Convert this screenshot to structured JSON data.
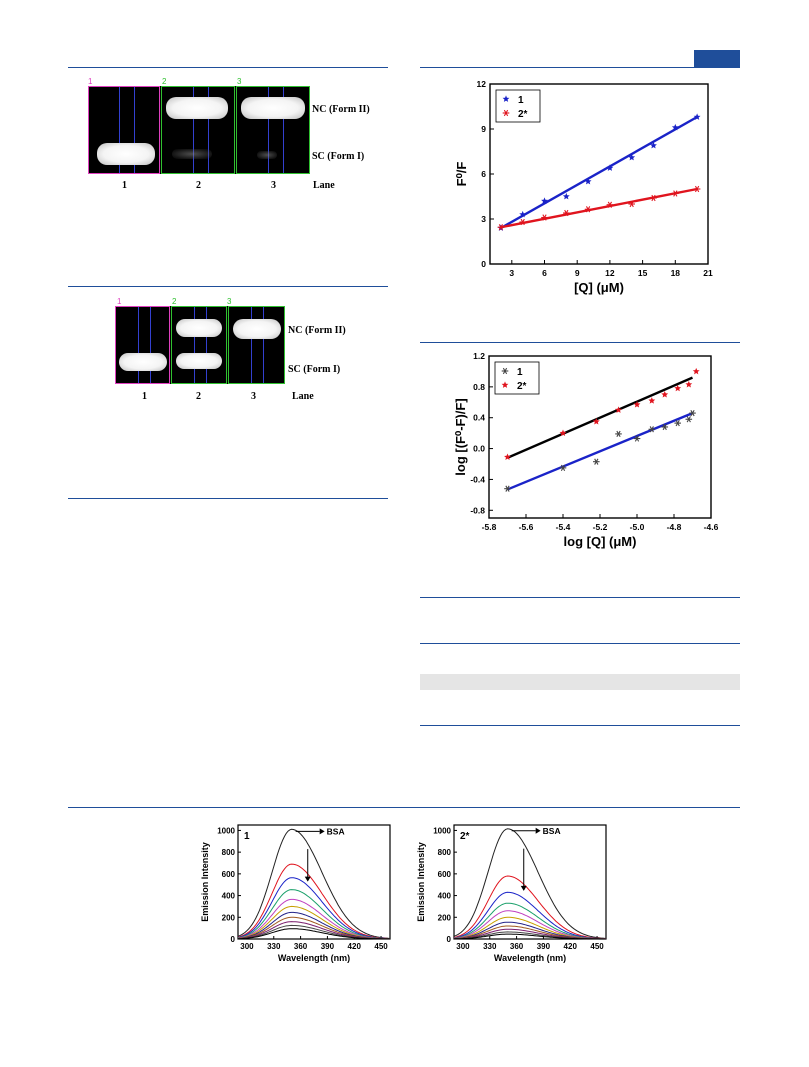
{
  "gel1": {
    "lane_markers": [
      "1",
      "2",
      "3"
    ],
    "labels": {
      "nc": "NC (Form II)",
      "sc": "SC (Form I)",
      "lane": "Lane"
    },
    "lane_numbers": [
      "1",
      "2",
      "3"
    ]
  },
  "gel2": {
    "lane_markers": [
      "1",
      "2",
      "3"
    ],
    "labels": {
      "nc": "NC (Form II)",
      "sc": "SC (Form I)",
      "lane": "Lane"
    },
    "lane_numbers": [
      "1",
      "2",
      "3"
    ]
  },
  "colors": {
    "rule": "#1f4e9a",
    "accent_block": "#1f4e9a",
    "gray_band": "#e5e5e5"
  },
  "chart_data": [
    {
      "type": "scatter",
      "id": "stern-volmer",
      "xlabel": "[Q] (μM)",
      "ylabel": "F⁰/F",
      "xlim": [
        1,
        21
      ],
      "ylim": [
        0,
        12
      ],
      "xticks": [
        "3",
        "6",
        "9",
        "12",
        "15",
        "18",
        "21"
      ],
      "yticks": [
        "0",
        "3",
        "6",
        "9",
        "12"
      ],
      "legend_position": "top-left",
      "series": [
        {
          "name": "1",
          "color": "#1a23c8",
          "marker": "star",
          "fit_color": "#1a23c8",
          "x": [
            2,
            4,
            6,
            8,
            10,
            12,
            14,
            16,
            18,
            20
          ],
          "y": [
            2.4,
            3.3,
            4.2,
            4.5,
            5.5,
            6.4,
            7.1,
            7.9,
            9.1,
            9.8
          ],
          "fit": [
            [
              2,
              2.4
            ],
            [
              20,
              9.8
            ]
          ]
        },
        {
          "name": "2*",
          "color": "#e0141e",
          "marker": "asterisk",
          "fit_color": "#e0141e",
          "x": [
            2,
            4,
            6,
            8,
            10,
            12,
            14,
            16,
            18,
            20
          ],
          "y": [
            2.45,
            2.8,
            3.1,
            3.4,
            3.65,
            3.95,
            4.0,
            4.4,
            4.7,
            5.0
          ],
          "fit": [
            [
              2,
              2.45
            ],
            [
              20,
              5.0
            ]
          ]
        }
      ]
    },
    {
      "type": "scatter",
      "id": "double-log",
      "xlabel": "log [Q] (μM)",
      "ylabel": "log [(F⁰-F)/F]",
      "xlim": [
        -5.8,
        -4.6
      ],
      "ylim": [
        -0.9,
        1.2
      ],
      "xticks": [
        "-5.8",
        "-5.6",
        "-5.4",
        "-5.2",
        "-5.0",
        "-4.8",
        "-4.6"
      ],
      "yticks": [
        "-0.8",
        "-0.4",
        "0.0",
        "0.4",
        "0.8",
        "1.2"
      ],
      "legend_position": "top-left",
      "series": [
        {
          "name": "1",
          "color": "#444444",
          "marker": "asterisk",
          "fit_color": "#1a23c8",
          "x": [
            -5.7,
            -5.4,
            -5.22,
            -5.1,
            -5.0,
            -4.92,
            -4.85,
            -4.78,
            -4.72,
            -4.7
          ],
          "y": [
            -0.52,
            -0.25,
            -0.17,
            0.19,
            0.13,
            0.25,
            0.28,
            0.33,
            0.38,
            0.46
          ],
          "fit": [
            [
              -5.7,
              -0.53
            ],
            [
              -4.7,
              0.46
            ]
          ]
        },
        {
          "name": "2*",
          "color": "#e0141e",
          "marker": "star",
          "fit_color": "#000000",
          "x": [
            -5.7,
            -5.4,
            -5.22,
            -5.1,
            -5.0,
            -4.92,
            -4.85,
            -4.78,
            -4.72,
            -4.68
          ],
          "y": [
            -0.11,
            0.2,
            0.35,
            0.5,
            0.57,
            0.62,
            0.7,
            0.78,
            0.83,
            1.0
          ],
          "fit": [
            [
              -5.7,
              -0.12
            ],
            [
              -4.7,
              0.92
            ]
          ]
        }
      ]
    },
    {
      "type": "line",
      "id": "emission-1",
      "panel_label": "1",
      "annotation": "BSA",
      "xlabel": "Wavelength (nm)",
      "ylabel": "Emission Intensity",
      "xlim": [
        290,
        460
      ],
      "ylim": [
        0,
        1050
      ],
      "xticks": [
        "300",
        "330",
        "360",
        "390",
        "420",
        "450"
      ],
      "yticks": [
        "0",
        "200",
        "400",
        "600",
        "800",
        "1000"
      ],
      "peak_x": 350,
      "peaks": [
        1010,
        690,
        565,
        455,
        365,
        300,
        245,
        200,
        160,
        125,
        95
      ],
      "colors": [
        "#222222",
        "#e0141e",
        "#1a23c8",
        "#1aa06a",
        "#c040c0",
        "#c8a000",
        "#222288",
        "#a05a20",
        "#7a1e6e",
        "#444444",
        "#000000"
      ]
    },
    {
      "type": "line",
      "id": "emission-2",
      "panel_label": "2*",
      "annotation": "BSA",
      "xlabel": "Wavelength (nm)",
      "ylabel": "Emission Intensity",
      "xlim": [
        290,
        460
      ],
      "ylim": [
        0,
        1050
      ],
      "xticks": [
        "300",
        "330",
        "360",
        "390",
        "420",
        "450"
      ],
      "yticks": [
        "0",
        "200",
        "400",
        "600",
        "800",
        "1000"
      ],
      "peak_x": 350,
      "peaks": [
        1015,
        580,
        430,
        330,
        260,
        200,
        155,
        120,
        90,
        65,
        45
      ],
      "colors": [
        "#222222",
        "#e0141e",
        "#1a23c8",
        "#1aa06a",
        "#c040c0",
        "#c8a000",
        "#222288",
        "#a05a20",
        "#7a1e6e",
        "#444444",
        "#000000"
      ]
    }
  ]
}
